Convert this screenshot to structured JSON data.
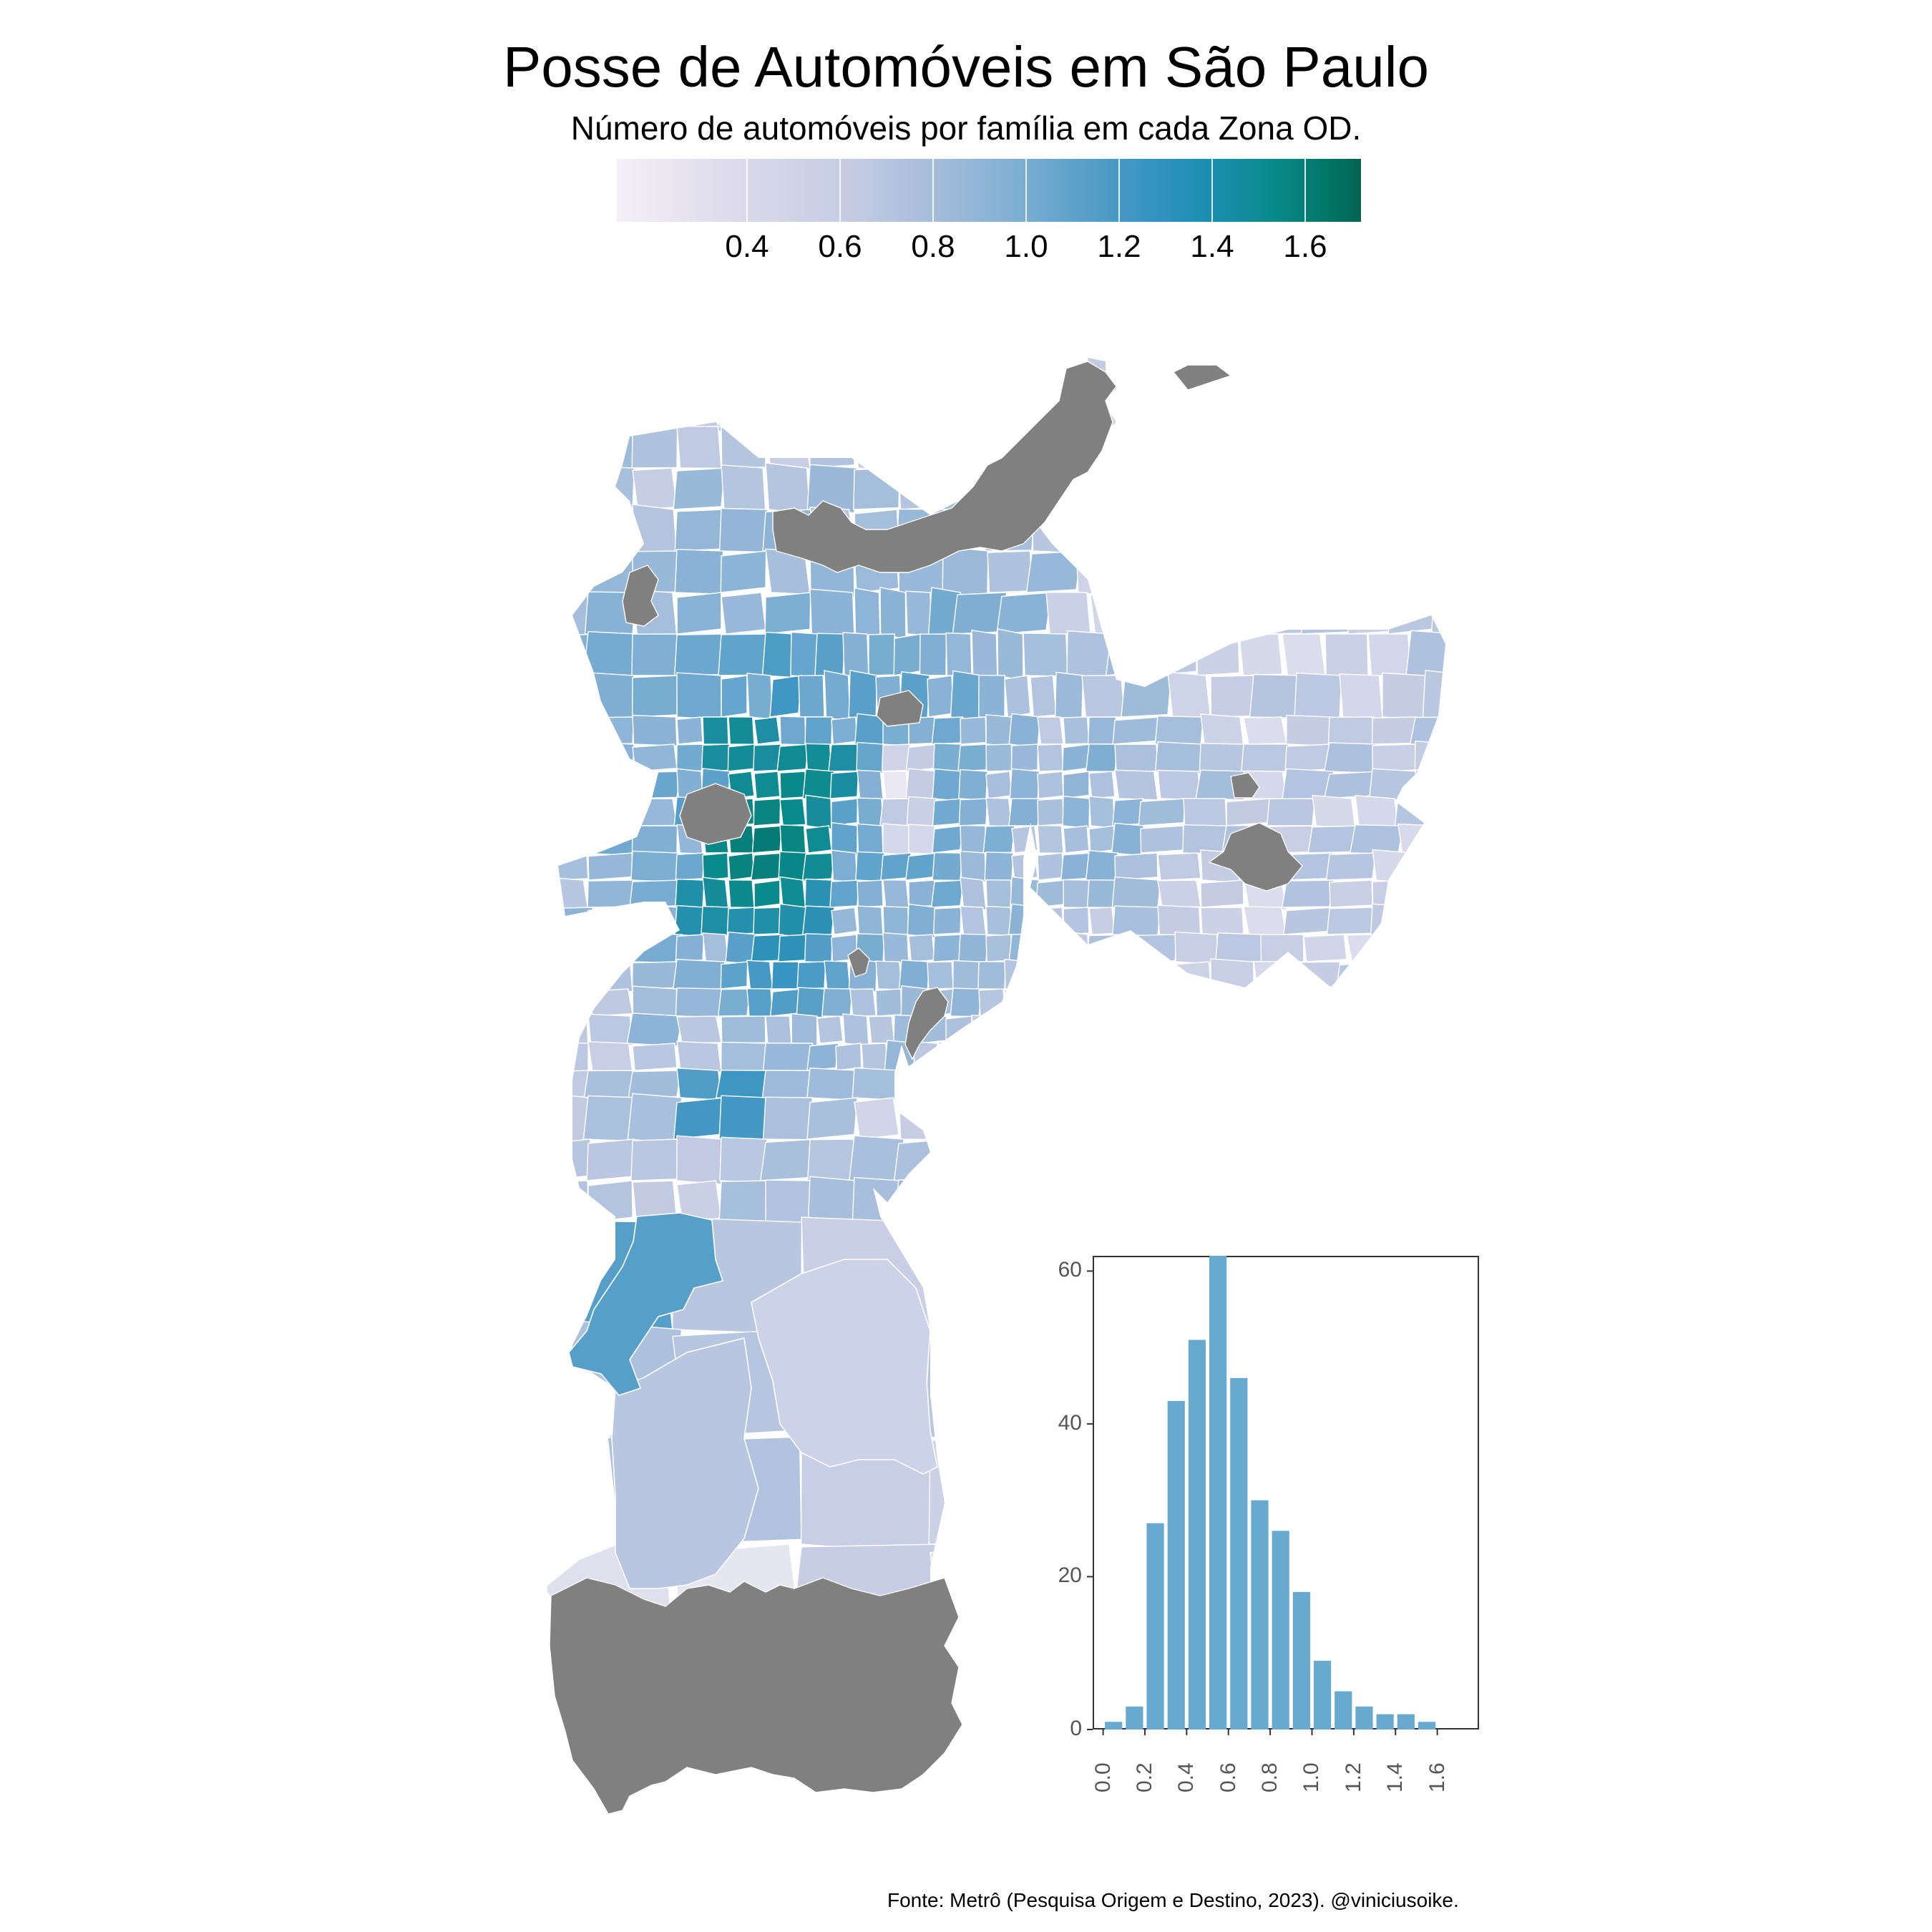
{
  "title": "Posse de Automóveis em São Paulo",
  "subtitle": "Número de automóveis por família em cada Zona OD.",
  "legend": {
    "ticks": [
      "0.4",
      "0.6",
      "0.8",
      "1.0",
      "1.2",
      "1.4",
      "1.6"
    ],
    "range": [
      0.12,
      1.72
    ],
    "colors": [
      "#f4f0f7",
      "#c3cbe3",
      "#86b1d5",
      "#3593c0",
      "#0a8a8c",
      "#016450"
    ]
  },
  "map": {
    "missing_color": "#808080",
    "border_color": "#ffffff"
  },
  "histogram": {
    "y_ticks": [
      "0",
      "20",
      "40",
      "60"
    ],
    "x_ticks": [
      "0.0",
      "0.2",
      "0.4",
      "0.6",
      "0.8",
      "1.0",
      "1.2",
      "1.4",
      "1.6"
    ],
    "bar_color": "#67a9cf"
  },
  "chart_data": {
    "type": "bar",
    "bin_width": 0.1,
    "bin_starts": [
      0.0,
      0.1,
      0.2,
      0.3,
      0.4,
      0.5,
      0.6,
      0.7,
      0.8,
      0.9,
      1.0,
      1.1,
      1.2,
      1.3,
      1.4,
      1.5,
      1.6
    ],
    "values": [
      1,
      3,
      27,
      43,
      51,
      62,
      46,
      30,
      26,
      18,
      9,
      5,
      3,
      2,
      2,
      1,
      0
    ],
    "xlim": [
      -0.05,
      1.8
    ],
    "ylim": [
      0,
      62
    ],
    "grid": false
  },
  "source": "Fonte: Metrô (Pesquisa Origem e Destino, 2023). @viniciusoike."
}
